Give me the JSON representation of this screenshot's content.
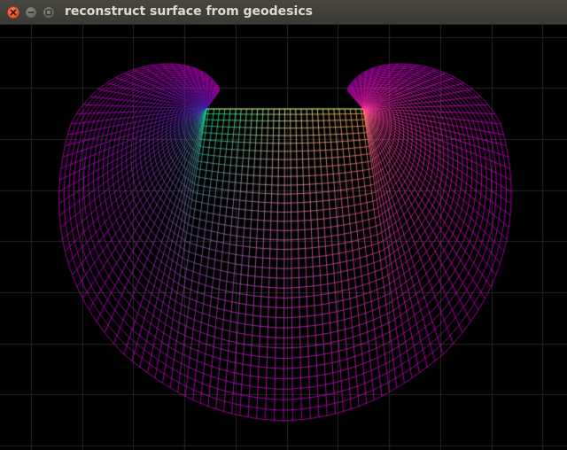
{
  "window": {
    "title": "reconstruct surface from geodesics",
    "controls": {
      "close_icon": "close-icon",
      "minimize_icon": "minimize-icon",
      "maximize_icon": "maximize-icon"
    }
  },
  "viewport": {
    "background": "#000000",
    "grid_color": "#262626",
    "colors": {
      "mesh_edge": "#c000c0",
      "top_center": "#e6ff99",
      "left_focus": "#00ff80",
      "left_arm": "#3322aa",
      "right_focus": "#ffc040",
      "right_arm": "#ff2aa0"
    }
  }
}
